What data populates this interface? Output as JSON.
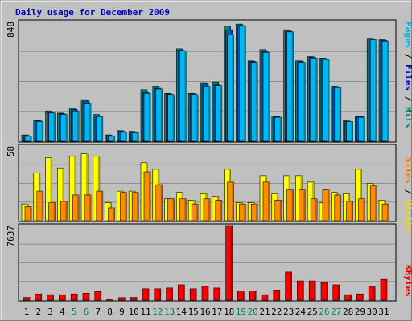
{
  "chart_data": [
    {
      "type": "bar",
      "panel": "top",
      "title": "Daily usage for December 2009",
      "y_max_label": "848",
      "ylim": [
        0,
        848
      ],
      "grid": true,
      "legend_right": [
        {
          "text": "Pages",
          "color": "#00b0e0"
        },
        {
          "text": "Files",
          "color": "#0000c0"
        },
        {
          "text": "Hits",
          "color": "#007860"
        }
      ],
      "categories": [
        "1",
        "2",
        "3",
        "4",
        "5",
        "6",
        "7",
        "8",
        "9",
        "10",
        "11",
        "12",
        "13",
        "14",
        "15",
        "16",
        "17",
        "18",
        "19",
        "20",
        "21",
        "22",
        "23",
        "24",
        "25",
        "26",
        "27",
        "28",
        "29",
        "30",
        "31"
      ],
      "series": [
        {
          "name": "Hits",
          "color": "#008870",
          "values": [
            45,
            148,
            215,
            200,
            235,
            295,
            190,
            45,
            75,
            70,
            365,
            390,
            340,
            655,
            340,
            415,
            420,
            815,
            830,
            570,
            650,
            180,
            790,
            570,
            600,
            590,
            390,
            145,
            180,
            730,
            720
          ]
        },
        {
          "name": "Files",
          "color": "#0050d0",
          "values": [
            40,
            145,
            205,
            195,
            225,
            285,
            180,
            40,
            70,
            65,
            345,
            375,
            335,
            645,
            335,
            405,
            400,
            790,
            820,
            565,
            635,
            175,
            780,
            565,
            595,
            585,
            385,
            140,
            175,
            725,
            715
          ]
        },
        {
          "name": "Pages",
          "color": "#00b8f0",
          "values": [
            35,
            140,
            200,
            190,
            215,
            270,
            175,
            35,
            65,
            60,
            340,
            370,
            330,
            640,
            330,
            390,
            395,
            755,
            815,
            560,
            630,
            170,
            775,
            560,
            590,
            580,
            380,
            140,
            170,
            720,
            710
          ]
        }
      ]
    },
    {
      "type": "bar",
      "panel": "middle",
      "y_max_label": "58",
      "ylim": [
        0,
        58
      ],
      "grid": true,
      "legend_right": [
        {
          "text": "Sites",
          "color": "#f08000"
        },
        {
          "text": "Visits",
          "color": "#e8e000"
        }
      ],
      "categories": [
        "1",
        "2",
        "3",
        "4",
        "5",
        "6",
        "7",
        "8",
        "9",
        "10",
        "11",
        "12",
        "13",
        "14",
        "15",
        "16",
        "17",
        "18",
        "19",
        "20",
        "21",
        "22",
        "23",
        "24",
        "25",
        "26",
        "27",
        "28",
        "29",
        "30",
        "31"
      ],
      "series": [
        {
          "name": "Visits",
          "color": "#ffff00",
          "values": [
            13,
            37,
            49,
            41,
            50,
            52,
            50,
            14,
            23,
            23,
            45,
            40,
            17,
            22,
            16,
            21,
            19,
            40,
            14,
            14,
            35,
            21,
            35,
            35,
            30,
            14,
            22,
            21,
            40,
            29,
            16
          ]
        },
        {
          "name": "Sites",
          "color": "#ff8c00",
          "values": [
            11,
            23,
            14,
            15,
            20,
            20,
            23,
            10,
            22,
            22,
            38,
            28,
            17,
            17,
            13,
            17,
            16,
            30,
            13,
            13,
            30,
            16,
            24,
            24,
            17,
            24,
            20,
            15,
            17,
            27,
            13
          ]
        }
      ]
    },
    {
      "type": "bar",
      "panel": "bottom",
      "y_max_label": "7637",
      "ylim": [
        0,
        7637
      ],
      "grid": true,
      "legend_right": [
        {
          "text": "KBytes",
          "color": "#e00000"
        }
      ],
      "categories": [
        "1",
        "2",
        "3",
        "4",
        "5",
        "6",
        "7",
        "8",
        "9",
        "10",
        "11",
        "12",
        "13",
        "14",
        "15",
        "16",
        "17",
        "18",
        "19",
        "20",
        "21",
        "22",
        "23",
        "24",
        "25",
        "26",
        "27",
        "28",
        "29",
        "30",
        "31"
      ],
      "series": [
        {
          "name": "KBytes",
          "color": "#ff0000",
          "values": [
            280,
            640,
            560,
            560,
            640,
            720,
            880,
            100,
            260,
            280,
            1160,
            1160,
            1240,
            1560,
            1160,
            1400,
            1240,
            7637,
            960,
            960,
            560,
            1040,
            2880,
            1960,
            1960,
            1800,
            1560,
            560,
            640,
            1400,
            2120
          ]
        }
      ]
    }
  ],
  "x_labels": {
    "values": [
      "1",
      "2",
      "3",
      "4",
      "5",
      "6",
      "7",
      "8",
      "9",
      "10",
      "11",
      "12",
      "13",
      "14",
      "15",
      "16",
      "17",
      "18",
      "19",
      "20",
      "21",
      "22",
      "23",
      "24",
      "25",
      "26",
      "27",
      "28",
      "29",
      "30",
      "31"
    ],
    "weekday_color": "#000000",
    "weekend_color": "#00805a",
    "weekend_days": [
      "5",
      "6",
      "12",
      "13",
      "19",
      "20",
      "26",
      "27"
    ]
  },
  "colors": {
    "frame_bg": "#c0c0c0",
    "plot_bg": "#c0c0c0",
    "title_color": "#0000c0",
    "separator": "#000000"
  }
}
